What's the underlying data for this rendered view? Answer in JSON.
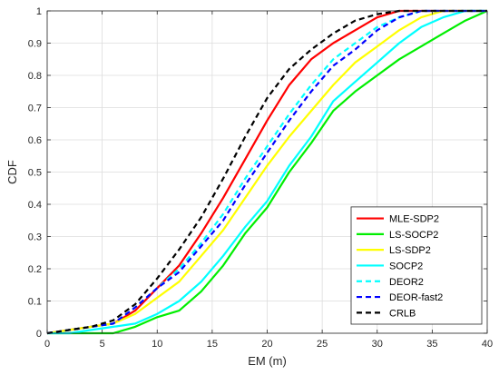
{
  "chart_data": {
    "type": "line",
    "title": "",
    "xlabel": "EM (m)",
    "ylabel": "CDF",
    "xlim": [
      0,
      40
    ],
    "ylim": [
      0,
      1
    ],
    "xticks": [
      0,
      5,
      10,
      15,
      20,
      25,
      30,
      35,
      40
    ],
    "yticks": [
      0,
      0.1,
      0.2,
      0.3,
      0.4,
      0.5,
      0.6,
      0.7,
      0.8,
      0.9,
      1
    ],
    "grid": true,
    "legend_position": "bottom-right",
    "series": [
      {
        "name": "MLE-SDP2",
        "color": "#ff0000",
        "style": "solid",
        "x": [
          0,
          2,
          4,
          6,
          8,
          10,
          12,
          14,
          16,
          18,
          20,
          22,
          24,
          26,
          28,
          30,
          32,
          34,
          36,
          38,
          40
        ],
        "y": [
          0,
          0.01,
          0.02,
          0.03,
          0.07,
          0.14,
          0.21,
          0.31,
          0.42,
          0.54,
          0.66,
          0.77,
          0.85,
          0.9,
          0.94,
          0.98,
          1,
          1,
          1,
          1,
          1
        ]
      },
      {
        "name": "LS-SOCP2",
        "color": "#00ee00",
        "style": "solid",
        "x": [
          0,
          2,
          4,
          6,
          8,
          10,
          12,
          14,
          16,
          18,
          20,
          22,
          24,
          26,
          28,
          30,
          32,
          34,
          36,
          38,
          40
        ],
        "y": [
          0,
          0,
          0,
          0,
          0.02,
          0.05,
          0.07,
          0.13,
          0.21,
          0.31,
          0.39,
          0.5,
          0.59,
          0.69,
          0.75,
          0.8,
          0.85,
          0.89,
          0.93,
          0.97,
          1
        ]
      },
      {
        "name": "LS-SDP2",
        "color": "#ffff00",
        "style": "solid",
        "x": [
          0,
          2,
          4,
          6,
          8,
          10,
          12,
          14,
          16,
          18,
          20,
          22,
          24,
          26,
          28,
          30,
          32,
          34,
          36,
          38,
          40
        ],
        "y": [
          0,
          0.01,
          0.02,
          0.03,
          0.06,
          0.11,
          0.16,
          0.24,
          0.32,
          0.42,
          0.52,
          0.61,
          0.69,
          0.77,
          0.84,
          0.89,
          0.94,
          0.98,
          1,
          1,
          1
        ]
      },
      {
        "name": "SOCP2",
        "color": "#00ffff",
        "style": "solid",
        "x": [
          0,
          2,
          4,
          6,
          8,
          10,
          12,
          14,
          16,
          18,
          20,
          22,
          24,
          26,
          28,
          30,
          32,
          34,
          36,
          38,
          40
        ],
        "y": [
          0,
          0,
          0.01,
          0.02,
          0.03,
          0.06,
          0.1,
          0.16,
          0.24,
          0.33,
          0.41,
          0.52,
          0.61,
          0.72,
          0.78,
          0.84,
          0.9,
          0.95,
          0.98,
          1,
          1
        ]
      },
      {
        "name": "DEOR2",
        "color": "#00ffff",
        "style": "dashed",
        "x": [
          0,
          2,
          4,
          6,
          8,
          10,
          12,
          14,
          16,
          18,
          20,
          22,
          24,
          26,
          28,
          30,
          32,
          34,
          36,
          38,
          40
        ],
        "y": [
          0,
          0.01,
          0.02,
          0.03,
          0.08,
          0.14,
          0.2,
          0.28,
          0.37,
          0.48,
          0.58,
          0.68,
          0.77,
          0.85,
          0.9,
          0.95,
          0.98,
          1,
          1,
          1,
          1
        ]
      },
      {
        "name": "DEOR-fast2",
        "color": "#0000ff",
        "style": "dashed",
        "x": [
          0,
          2,
          4,
          6,
          8,
          10,
          12,
          14,
          16,
          18,
          20,
          22,
          24,
          26,
          28,
          30,
          32,
          34,
          36,
          38,
          40
        ],
        "y": [
          0,
          0.01,
          0.02,
          0.03,
          0.08,
          0.14,
          0.19,
          0.27,
          0.35,
          0.46,
          0.56,
          0.66,
          0.75,
          0.83,
          0.88,
          0.94,
          0.98,
          1,
          1,
          1,
          1
        ]
      },
      {
        "name": "CRLB",
        "color": "#000000",
        "style": "dashed",
        "x": [
          0,
          2,
          4,
          6,
          8,
          10,
          12,
          14,
          16,
          18,
          20,
          22,
          24,
          26,
          28,
          30,
          32,
          34,
          36,
          38,
          40
        ],
        "y": [
          0,
          0.01,
          0.02,
          0.04,
          0.09,
          0.17,
          0.26,
          0.36,
          0.48,
          0.61,
          0.73,
          0.82,
          0.88,
          0.93,
          0.97,
          0.99,
          1,
          1,
          1,
          1,
          1
        ]
      }
    ]
  }
}
